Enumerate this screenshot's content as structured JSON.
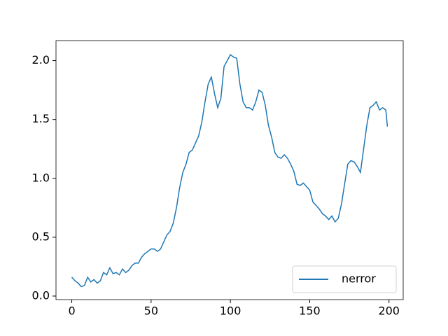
{
  "chart_data": {
    "type": "line",
    "x": [
      0,
      2,
      4,
      6,
      8,
      10,
      12,
      14,
      16,
      18,
      20,
      22,
      24,
      26,
      28,
      30,
      32,
      34,
      36,
      38,
      40,
      42,
      44,
      46,
      48,
      50,
      52,
      54,
      56,
      58,
      60,
      62,
      64,
      66,
      68,
      70,
      72,
      74,
      76,
      78,
      80,
      82,
      84,
      86,
      88,
      90,
      92,
      94,
      96,
      98,
      100,
      102,
      104,
      106,
      108,
      110,
      112,
      114,
      116,
      118,
      120,
      122,
      124,
      126,
      128,
      130,
      132,
      134,
      136,
      138,
      140,
      142,
      144,
      146,
      148,
      150,
      152,
      154,
      156,
      158,
      160,
      162,
      164,
      166,
      168,
      170,
      172,
      174,
      176,
      178,
      180,
      182,
      184,
      186,
      188,
      190,
      192,
      194,
      196,
      198,
      199
    ],
    "series": [
      {
        "name": "nerror",
        "color": "#1f77b4",
        "values": [
          0.16,
          0.13,
          0.11,
          0.08,
          0.09,
          0.16,
          0.12,
          0.14,
          0.11,
          0.13,
          0.2,
          0.18,
          0.24,
          0.19,
          0.2,
          0.18,
          0.23,
          0.2,
          0.22,
          0.26,
          0.28,
          0.28,
          0.33,
          0.36,
          0.38,
          0.4,
          0.4,
          0.38,
          0.4,
          0.46,
          0.52,
          0.55,
          0.62,
          0.75,
          0.92,
          1.05,
          1.12,
          1.22,
          1.24,
          1.3,
          1.36,
          1.48,
          1.65,
          1.8,
          1.86,
          1.72,
          1.6,
          1.68,
          1.95,
          2.0,
          2.05,
          2.03,
          2.02,
          1.8,
          1.65,
          1.6,
          1.6,
          1.58,
          1.65,
          1.75,
          1.73,
          1.62,
          1.45,
          1.35,
          1.22,
          1.18,
          1.17,
          1.2,
          1.17,
          1.12,
          1.06,
          0.95,
          0.94,
          0.96,
          0.93,
          0.9,
          0.8,
          0.77,
          0.74,
          0.7,
          0.68,
          0.65,
          0.68,
          0.63,
          0.66,
          0.78,
          0.95,
          1.12,
          1.15,
          1.14,
          1.1,
          1.05,
          1.25,
          1.45,
          1.6,
          1.62,
          1.65,
          1.58,
          1.6,
          1.58,
          1.44
        ]
      }
    ],
    "xlim": [
      -9.95,
      208.95
    ],
    "xticks": [
      0,
      50,
      100,
      150,
      200
    ],
    "ylim": [
      -0.03,
      2.17
    ],
    "yticks": [
      {
        "value": 0,
        "label": "0.0"
      },
      0.5,
      {
        "value": 1,
        "label": "1.0"
      },
      1.5,
      {
        "value": 2,
        "label": "2.0"
      }
    ],
    "legend": "lower right"
  }
}
